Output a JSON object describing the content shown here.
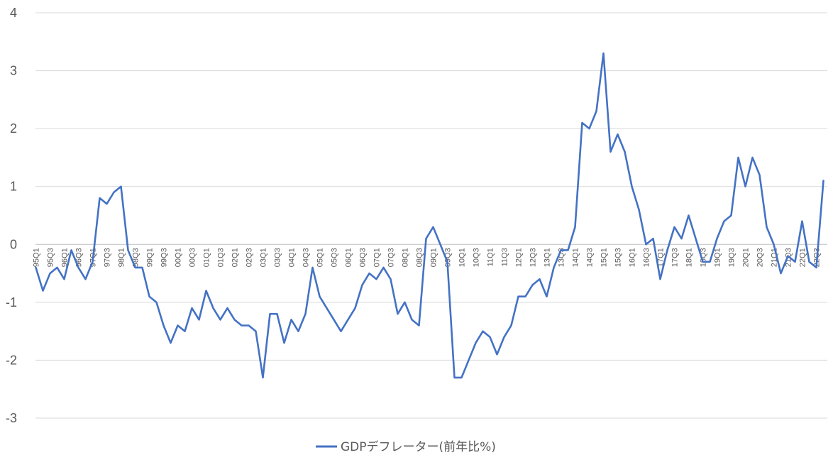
{
  "chart_data": {
    "type": "line",
    "ylim": [
      -3,
      4
    ],
    "yticks": [
      "4",
      "3",
      "2",
      "1",
      "0",
      "-1",
      "-2",
      "-3"
    ],
    "grid": "horizontal",
    "legend_position": "bottom",
    "colors": {
      "series": "#4472C4",
      "grid": "#d9d9d9",
      "axis": "#bfbfbf",
      "text": "#595959"
    },
    "categories": [
      "95Q1",
      "95Q2",
      "95Q3",
      "95Q4",
      "96Q1",
      "96Q2",
      "96Q3",
      "96Q4",
      "97Q1",
      "97Q2",
      "97Q3",
      "97Q4",
      "98Q1",
      "98Q2",
      "98Q3",
      "98Q4",
      "99Q1",
      "99Q2",
      "99Q3",
      "99Q4",
      "00Q1",
      "00Q2",
      "00Q3",
      "00Q4",
      "01Q1",
      "01Q2",
      "01Q3",
      "01Q4",
      "02Q1",
      "02Q2",
      "02Q3",
      "02Q4",
      "03Q1",
      "03Q2",
      "03Q3",
      "03Q4",
      "04Q1",
      "04Q2",
      "04Q3",
      "04Q4",
      "05Q1",
      "05Q2",
      "05Q3",
      "05Q4",
      "06Q1",
      "06Q2",
      "06Q3",
      "06Q4",
      "07Q1",
      "07Q2",
      "07Q3",
      "07Q4",
      "08Q1",
      "08Q2",
      "08Q3",
      "08Q4",
      "09Q1",
      "09Q2",
      "09Q3",
      "09Q4",
      "10Q1",
      "10Q2",
      "10Q3",
      "10Q4",
      "11Q1",
      "11Q2",
      "11Q3",
      "11Q4",
      "12Q1",
      "12Q2",
      "12Q3",
      "12Q4",
      "13Q1",
      "13Q2",
      "13Q3",
      "13Q4",
      "14Q1",
      "14Q2",
      "14Q3",
      "14Q4",
      "15Q1",
      "15Q2",
      "15Q3",
      "15Q4",
      "16Q1",
      "16Q2",
      "16Q3",
      "16Q4",
      "17Q1",
      "17Q2",
      "17Q3",
      "17Q4",
      "18Q1",
      "18Q2",
      "18Q3",
      "18Q4",
      "19Q1",
      "19Q2",
      "19Q3",
      "19Q4",
      "20Q1",
      "20Q2",
      "20Q3",
      "20Q4",
      "21Q1",
      "21Q2",
      "21Q3",
      "21Q4",
      "22Q1",
      "22Q2",
      "22Q3",
      "22Q4"
    ],
    "visible_tick_labels": [
      "95Q1",
      "95Q3",
      "96Q1",
      "96Q3",
      "97Q1",
      "97Q3",
      "98Q1",
      "98Q3",
      "99Q1",
      "99Q3",
      "00Q1",
      "00Q3",
      "01Q1",
      "01Q3",
      "02Q1",
      "02Q3",
      "03Q1",
      "03Q3",
      "04Q1",
      "04Q3",
      "05Q1",
      "05Q3",
      "06Q1",
      "06Q3",
      "07Q1",
      "07Q3",
      "08Q1",
      "08Q3",
      "09Q1",
      "09Q3",
      "10Q1",
      "10Q3",
      "11Q1",
      "11Q3",
      "12Q1",
      "12Q3",
      "13Q1",
      "13Q3",
      "14Q1",
      "14Q3",
      "15Q1",
      "15Q3",
      "16Q1",
      "16Q3",
      "17Q1",
      "17Q3",
      "18Q1",
      "18Q3",
      "19Q1",
      "19Q3",
      "20Q1",
      "20Q3",
      "21Q1",
      "21Q3",
      "22Q1",
      "22Q3"
    ],
    "series": [
      {
        "name": "GDPデフレーター(前年比%)",
        "values": [
          -0.4,
          -0.8,
          -0.5,
          -0.4,
          -0.6,
          -0.1,
          -0.4,
          -0.6,
          -0.3,
          0.8,
          0.7,
          0.9,
          1.0,
          -0.1,
          -0.4,
          -0.4,
          -0.9,
          -1.0,
          -1.4,
          -1.7,
          -1.4,
          -1.5,
          -1.1,
          -1.3,
          -0.8,
          -1.1,
          -1.3,
          -1.1,
          -1.3,
          -1.4,
          -1.4,
          -1.5,
          -2.3,
          -1.2,
          -1.2,
          -1.7,
          -1.3,
          -1.5,
          -1.2,
          -0.4,
          -0.9,
          -1.1,
          -1.3,
          -1.5,
          -1.3,
          -1.1,
          -0.7,
          -0.5,
          -0.6,
          -0.4,
          -0.6,
          -1.2,
          -1.0,
          -1.3,
          -1.4,
          0.1,
          0.3,
          0.0,
          -0.3,
          -2.3,
          -2.3,
          -2.0,
          -1.7,
          -1.5,
          -1.6,
          -1.9,
          -1.6,
          -1.4,
          -0.9,
          -0.9,
          -0.7,
          -0.6,
          -0.9,
          -0.4,
          -0.1,
          -0.1,
          0.3,
          2.1,
          2.0,
          2.3,
          3.3,
          1.6,
          1.9,
          1.6,
          1.0,
          0.6,
          0.0,
          0.1,
          -0.6,
          -0.1,
          0.3,
          0.1,
          0.5,
          0.1,
          -0.3,
          -0.3,
          0.1,
          0.4,
          0.5,
          1.5,
          1.0,
          1.5,
          1.2,
          0.3,
          0.0,
          -0.5,
          -0.2,
          -0.3,
          0.4,
          -0.3,
          -0.4,
          1.1
        ]
      }
    ]
  }
}
